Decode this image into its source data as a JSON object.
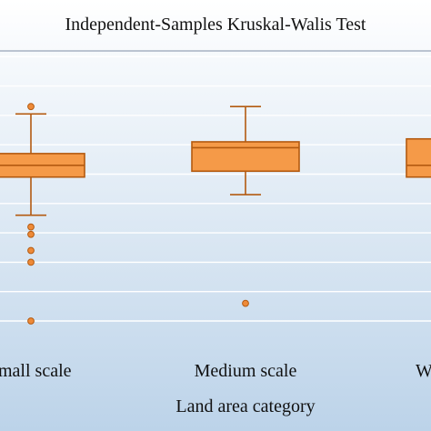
{
  "chart_data": {
    "type": "boxplot",
    "title": "Independent-Samples Kruskal-Walis Test",
    "xlabel": "Land area category",
    "ylabel": "",
    "categories": [
      "mall scale",
      "Medium scale",
      "W"
    ],
    "ylim": [
      0,
      10
    ],
    "grid": true,
    "colors": {
      "box_fill": "#F59A48",
      "box_stroke": "#B35A10",
      "outlier_fill": "#EE8A38",
      "plot_bg_top": "#FFFFFF",
      "plot_bg_bottom": "#BCD3E9",
      "grid": "#FFFFFF"
    },
    "boxes": [
      {
        "category": "mall scale",
        "whisker_low": 3.6,
        "q1": 4.9,
        "median": 5.3,
        "q3": 5.7,
        "whisker_high": 7.05,
        "outliers": [
          7.3,
          3.2,
          2.95,
          2.4,
          2.0,
          0.0
        ]
      },
      {
        "category": "Medium scale",
        "whisker_low": 4.3,
        "q1": 5.1,
        "median": 5.9,
        "q3": 6.1,
        "whisker_high": 7.3,
        "outliers": [
          0.6
        ]
      },
      {
        "category": "W",
        "whisker_low": null,
        "q1": 4.9,
        "median": 5.3,
        "q3": 6.2,
        "whisker_high": null,
        "outliers": []
      }
    ]
  }
}
